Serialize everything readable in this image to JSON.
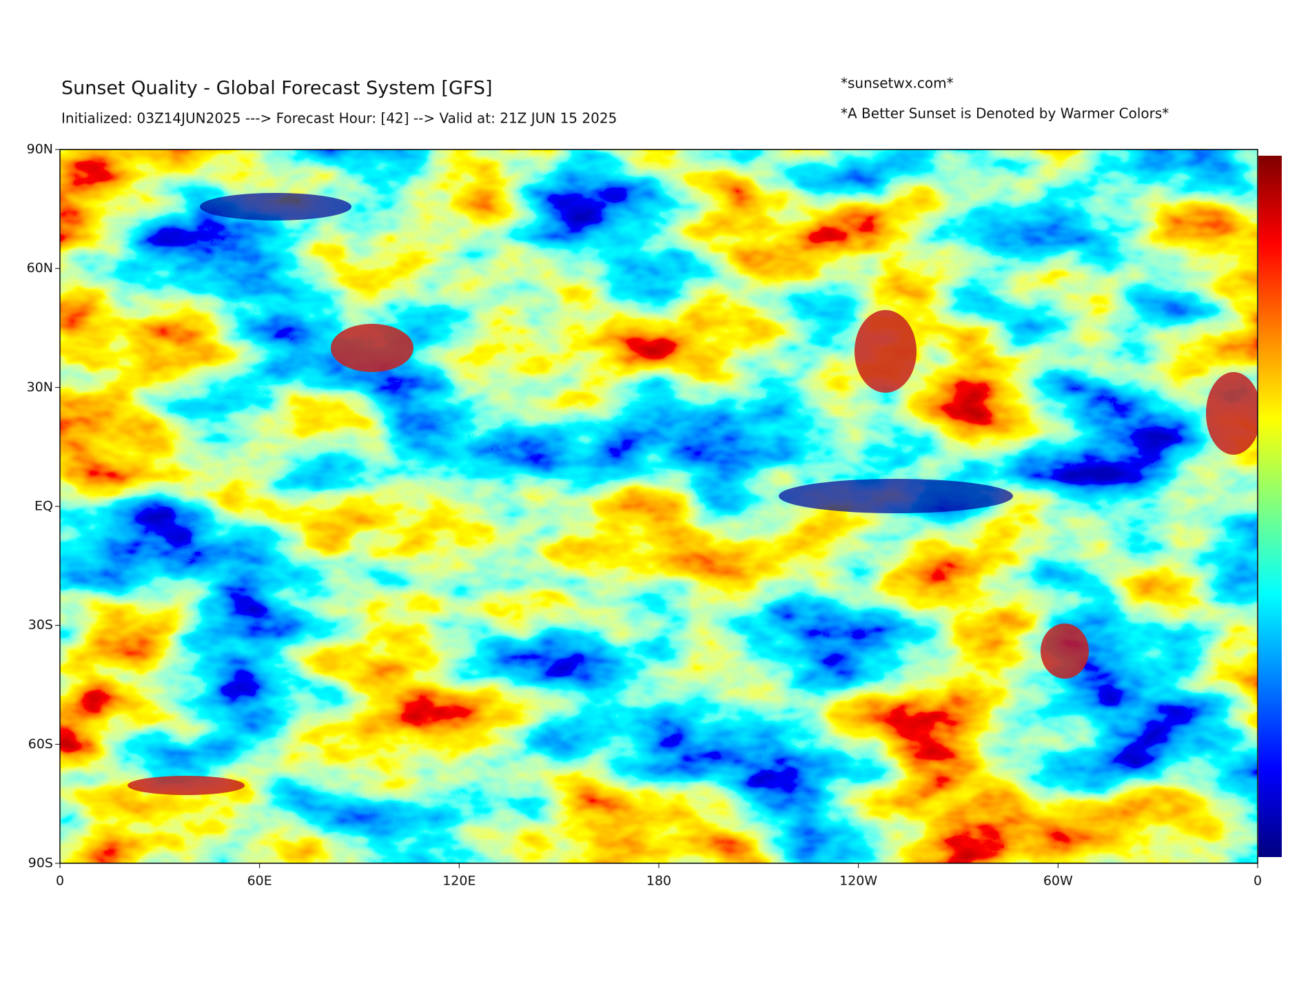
{
  "header": {
    "title": "Sunset Quality - Global Forecast System [GFS]",
    "subtitle": "Initialized: 03Z14JUN2025 ---> Forecast Hour: [42] --> Valid at: 21Z JUN 15 2025",
    "site": "*sunsetwx.com*",
    "note": "*A Better Sunset is Denoted by Warmer Colors*"
  },
  "map": {
    "lat_labels": [
      "90N",
      "60N",
      "30N",
      "EQ",
      "30S",
      "60S",
      "90S"
    ],
    "lon_labels": [
      "0",
      "60E",
      "120E",
      "180",
      "120W",
      "60W",
      "0"
    ]
  }
}
